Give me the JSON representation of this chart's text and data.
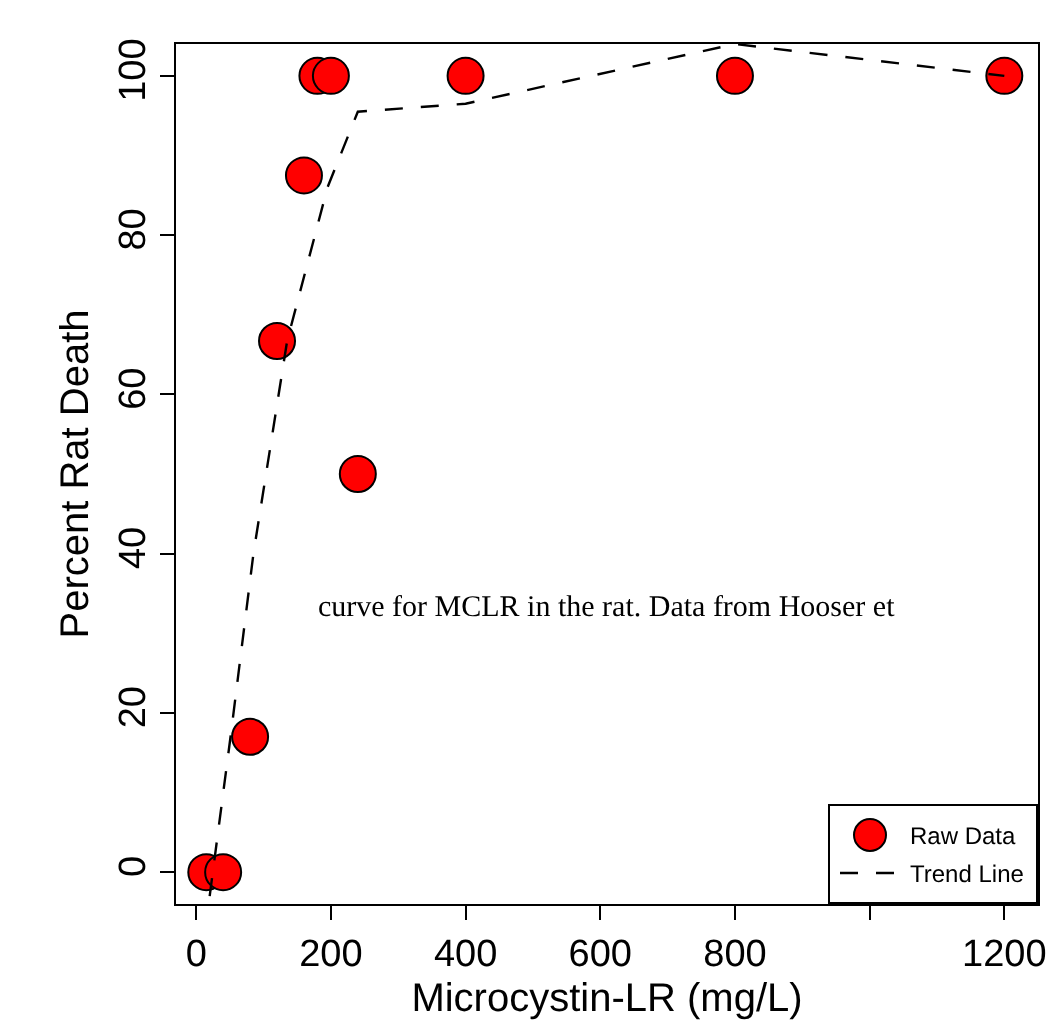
{
  "chart_data": {
    "type": "scatter",
    "xlabel": "Microcystin-LR (mg/L)",
    "ylabel": "Percent Rat Death",
    "annotations": [
      "curve for MCLR in the rat. Data from Hooser et"
    ],
    "series": [
      {
        "name": "Raw Data",
        "color": "#ff0000",
        "marker": "circle",
        "x": [
          15,
          40,
          80,
          120,
          160,
          180,
          200,
          240,
          400,
          800,
          1200
        ],
        "values": [
          0,
          0,
          17,
          66.7,
          87.5,
          100,
          100,
          50,
          100,
          100,
          100
        ]
      },
      {
        "name": "Trend Line",
        "type": "line",
        "color": "#000000",
        "marker": "none",
        "line_style": "dashed",
        "x": [
          20,
          51,
          85,
          135,
          195,
          240,
          400,
          800,
          1200
        ],
        "values": [
          -3,
          17,
          40,
          66.7,
          86,
          95.5,
          96.5,
          104,
          100
        ]
      }
    ],
    "xlim": [
      -30,
      1250
    ],
    "ylim": [
      -4,
      104
    ],
    "xticks": [
      0,
      200,
      400,
      600,
      800,
      {
        "value": 1000,
        "label": null
      },
      1200
    ],
    "yticks": [
      0,
      20,
      40,
      60,
      80,
      100
    ],
    "grid": false,
    "legend": "bottom right"
  }
}
